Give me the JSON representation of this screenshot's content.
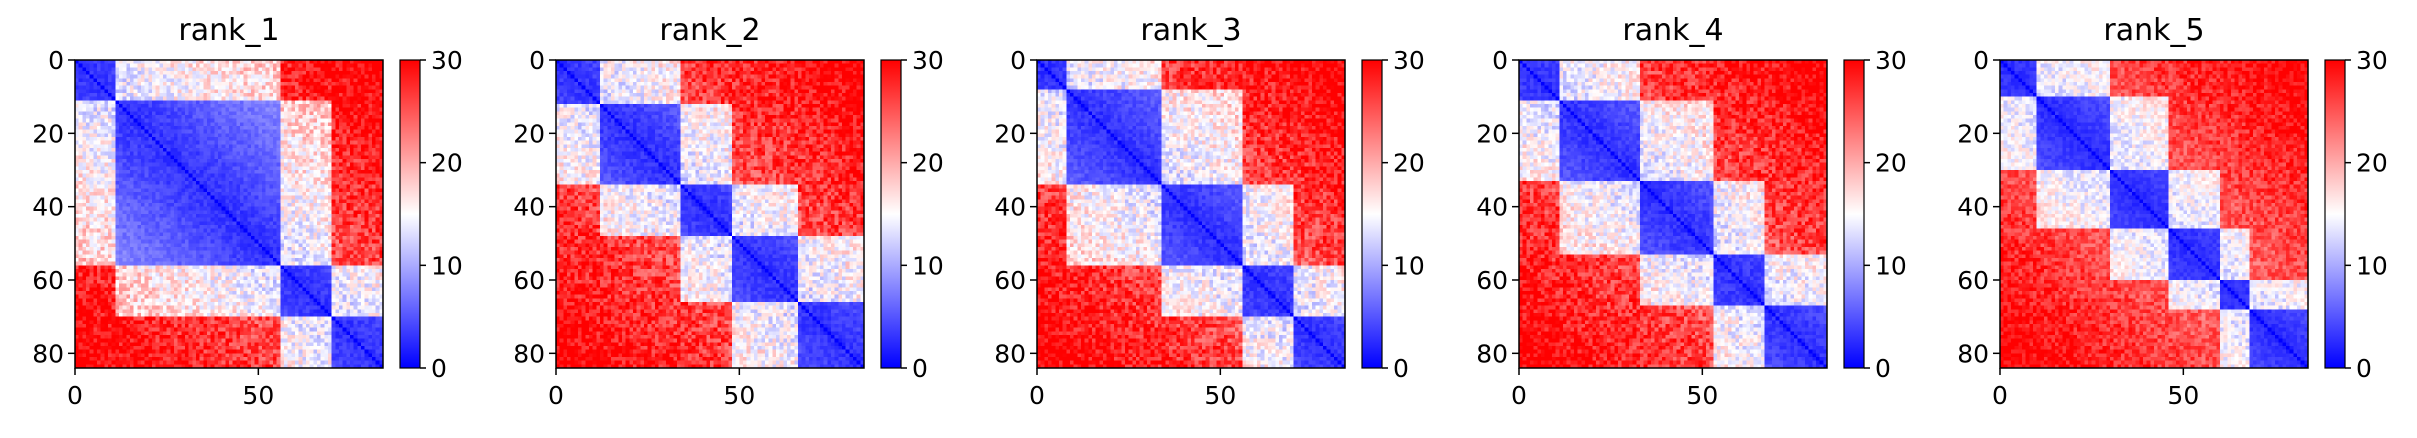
{
  "chart_data": {
    "type": "heatmap",
    "matrix_size": 84,
    "colormap": "bwr",
    "colors": {
      "low": "#0000ff",
      "mid": "#ffffff",
      "high": "#ff0000"
    },
    "grid": false,
    "panels": [
      {
        "title": "rank_1",
        "domains": [
          [
            0,
            11
          ],
          [
            11,
            56
          ],
          [
            56,
            70
          ],
          [
            70,
            84
          ]
        ],
        "noise": 2.5,
        "seed": 11
      },
      {
        "title": "rank_2",
        "domains": [
          [
            0,
            12
          ],
          [
            12,
            34
          ],
          [
            34,
            48
          ],
          [
            48,
            66
          ],
          [
            66,
            84
          ]
        ],
        "noise": 2.5,
        "seed": 23
      },
      {
        "title": "rank_3",
        "domains": [
          [
            0,
            8
          ],
          [
            8,
            34
          ],
          [
            34,
            56
          ],
          [
            56,
            70
          ],
          [
            70,
            84
          ]
        ],
        "noise": 2.5,
        "seed": 37
      },
      {
        "title": "rank_4",
        "domains": [
          [
            0,
            11
          ],
          [
            11,
            33
          ],
          [
            33,
            53
          ],
          [
            53,
            67
          ],
          [
            67,
            84
          ]
        ],
        "noise": 2.5,
        "seed": 41
      },
      {
        "title": "rank_5",
        "domains": [
          [
            0,
            10
          ],
          [
            10,
            30
          ],
          [
            30,
            46
          ],
          [
            46,
            60
          ],
          [
            60,
            68
          ],
          [
            68,
            84
          ]
        ],
        "noise": 2.0,
        "seed": 53
      }
    ],
    "xaxis": {
      "ticks": [
        0,
        50
      ],
      "range": [
        0,
        84
      ]
    },
    "yaxis": {
      "ticks": [
        0,
        20,
        40,
        60,
        80
      ],
      "range": [
        0,
        84
      ],
      "inverted": true
    },
    "colorbar": {
      "min": 0,
      "max": 30,
      "ticks": [
        0,
        10,
        20,
        30
      ]
    }
  }
}
